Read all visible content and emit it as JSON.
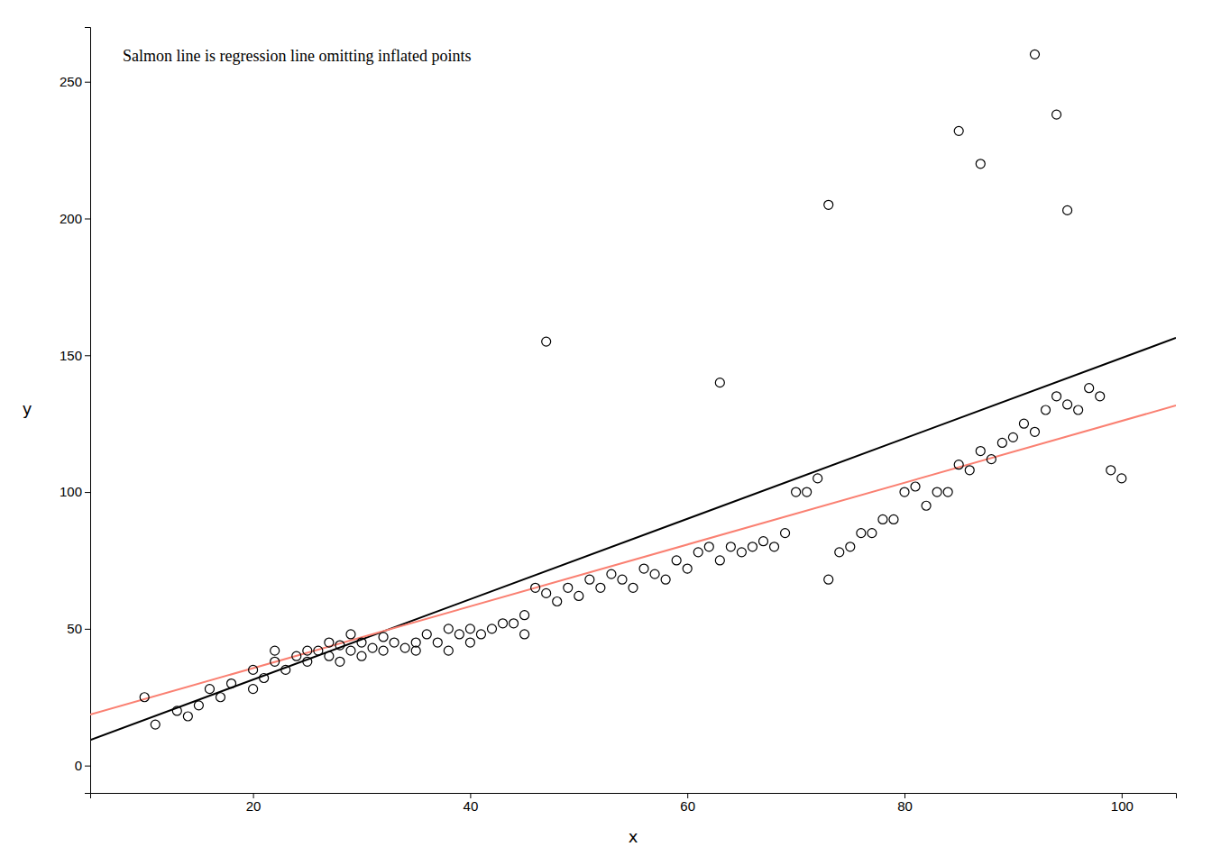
{
  "chart_data": {
    "type": "scatter",
    "title": "Salmon line is regression line omitting inflated points",
    "xlabel": "x",
    "ylabel": "y",
    "xlim": [
      5,
      105
    ],
    "ylim": [
      -10,
      270
    ],
    "xticks": [
      20,
      40,
      60,
      80,
      100
    ],
    "yticks": [
      0,
      50,
      100,
      150,
      200,
      250
    ],
    "grid": false,
    "series": [
      {
        "type": "scatter",
        "marker": "circle",
        "color": "#000000",
        "x": [
          10,
          11,
          13,
          14,
          15,
          16,
          17,
          18,
          20,
          20,
          21,
          22,
          22,
          23,
          24,
          25,
          25,
          26,
          27,
          27,
          28,
          28,
          29,
          29,
          30,
          30,
          31,
          32,
          32,
          33,
          34,
          35,
          35,
          36,
          37,
          38,
          38,
          39,
          40,
          40,
          41,
          42,
          43,
          44,
          45,
          45,
          46,
          47,
          48,
          49,
          50,
          51,
          52,
          53,
          54,
          55,
          56,
          57,
          58,
          59,
          60,
          61,
          62,
          63,
          64,
          65,
          66,
          67,
          68,
          69,
          70,
          71,
          72,
          73,
          74,
          75,
          76,
          77,
          78,
          79,
          80,
          81,
          82,
          83,
          84,
          85,
          86,
          87,
          88,
          89,
          90,
          91,
          92,
          93,
          94,
          95,
          96,
          97,
          98,
          99,
          100,
          47,
          63,
          73,
          85,
          87,
          92,
          94,
          95
        ],
        "values": [
          25,
          15,
          20,
          18,
          22,
          28,
          25,
          30,
          28,
          35,
          32,
          38,
          42,
          35,
          40,
          38,
          42,
          42,
          40,
          45,
          38,
          44,
          42,
          48,
          40,
          45,
          43,
          42,
          47,
          45,
          43,
          42,
          45,
          48,
          45,
          50,
          42,
          48,
          50,
          45,
          48,
          50,
          52,
          52,
          55,
          48,
          65,
          63,
          60,
          65,
          62,
          68,
          65,
          70,
          68,
          65,
          72,
          70,
          68,
          75,
          72,
          78,
          80,
          75,
          80,
          78,
          80,
          82,
          80,
          85,
          100,
          100,
          105,
          68,
          78,
          80,
          85,
          85,
          90,
          90,
          100,
          102,
          95,
          100,
          100,
          110,
          108,
          115,
          112,
          118,
          120,
          125,
          122,
          130,
          135,
          132,
          130,
          138,
          135,
          108,
          105,
          155,
          140,
          205,
          232,
          220,
          260,
          238,
          203
        ]
      },
      {
        "type": "line",
        "line_style": "solid",
        "color": "#000000",
        "x": [
          5,
          105
        ],
        "values": [
          9.35,
          156.35
        ]
      },
      {
        "type": "line",
        "line_style": "solid",
        "color": "#FA8072",
        "x": [
          5,
          105
        ],
        "values": [
          18.65,
          131.65
        ]
      }
    ]
  }
}
